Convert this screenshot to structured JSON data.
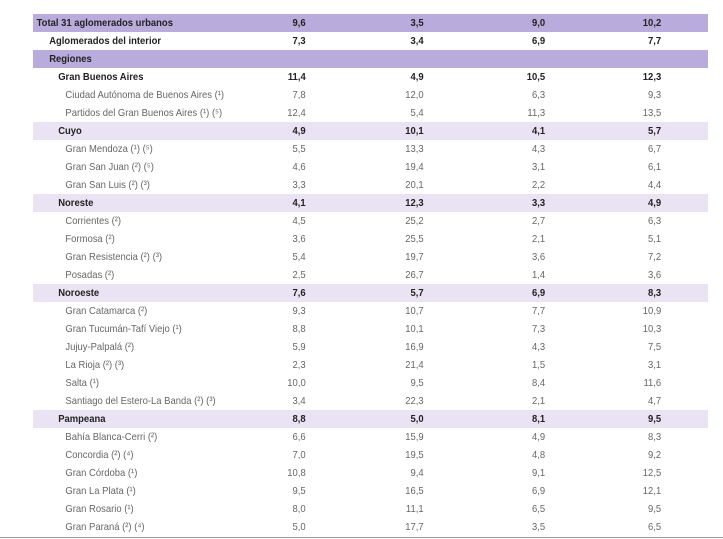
{
  "rows": [
    {
      "type": "dark",
      "level": 0,
      "label": "Total 31 aglomerados urbanos",
      "values": [
        "9,6",
        "3,5",
        "9,0",
        "10,2"
      ]
    },
    {
      "type": "bold",
      "level": 1,
      "label": "Aglomerados del interior",
      "values": [
        "7,3",
        "3,4",
        "6,9",
        "7,7"
      ]
    },
    {
      "type": "dark",
      "level": 1,
      "label": "Regiones",
      "values": [
        "",
        "",
        "",
        ""
      ]
    },
    {
      "type": "bold",
      "level": 2,
      "label": "Gran Buenos Aires",
      "values": [
        "11,4",
        "4,9",
        "10,5",
        "12,3"
      ]
    },
    {
      "type": "city",
      "level": 3,
      "label": "Ciudad Autónoma de Buenos Aires (¹)",
      "values": [
        "7,8",
        "12,0",
        "6,3",
        "9,3"
      ]
    },
    {
      "type": "city",
      "level": 3,
      "label": "Partidos del Gran Buenos Aires (¹) (⁵)",
      "values": [
        "12,4",
        "5,4",
        "11,3",
        "13,5"
      ]
    },
    {
      "type": "light",
      "level": 2,
      "label": "Cuyo",
      "values": [
        "4,9",
        "10,1",
        "4,1",
        "5,7"
      ]
    },
    {
      "type": "city",
      "level": 3,
      "label": "Gran Mendoza (¹) (⁵)",
      "values": [
        "5,5",
        "13,3",
        "4,3",
        "6,7"
      ]
    },
    {
      "type": "city",
      "level": 3,
      "label": "Gran San Juan (²) (⁵)",
      "values": [
        "4,6",
        "19,4",
        "3,1",
        "6,1"
      ]
    },
    {
      "type": "city",
      "level": 3,
      "label": "Gran San Luis (²) (³)",
      "values": [
        "3,3",
        "20,1",
        "2,2",
        "4,4"
      ]
    },
    {
      "type": "light",
      "level": 2,
      "label": "Noreste",
      "values": [
        "4,1",
        "12,3",
        "3,3",
        "4,9"
      ]
    },
    {
      "type": "city",
      "level": 3,
      "label": "Corrientes (²)",
      "values": [
        "4,5",
        "25,2",
        "2,7",
        "6,3"
      ]
    },
    {
      "type": "city",
      "level": 3,
      "label": "Formosa (²)",
      "values": [
        "3,6",
        "25,5",
        "2,1",
        "5,1"
      ]
    },
    {
      "type": "city",
      "level": 3,
      "label": "Gran Resistencia (²) (³)",
      "values": [
        "5,4",
        "19,7",
        "3,6",
        "7,2"
      ]
    },
    {
      "type": "city",
      "level": 3,
      "label": "Posadas (²)",
      "values": [
        "2,5",
        "26,7",
        "1,4",
        "3,6"
      ]
    },
    {
      "type": "light",
      "level": 2,
      "label": "Noroeste",
      "values": [
        "7,6",
        "5,7",
        "6,9",
        "8,3"
      ]
    },
    {
      "type": "city",
      "level": 3,
      "label": "Gran Catamarca (²)",
      "values": [
        "9,3",
        "10,7",
        "7,7",
        "10,9"
      ]
    },
    {
      "type": "city",
      "level": 3,
      "label": "Gran Tucumán-Tafí Viejo (¹)",
      "values": [
        "8,8",
        "10,1",
        "7,3",
        "10,3"
      ]
    },
    {
      "type": "city",
      "level": 3,
      "label": "Jujuy-Palpalá (²)",
      "values": [
        "5,9",
        "16,9",
        "4,3",
        "7,5"
      ]
    },
    {
      "type": "city",
      "level": 3,
      "label": "La Rioja (²) (³)",
      "values": [
        "2,3",
        "21,4",
        "1,5",
        "3,1"
      ]
    },
    {
      "type": "city",
      "level": 3,
      "label": "Salta (¹)",
      "values": [
        "10,0",
        "9,5",
        "8,4",
        "11,6"
      ]
    },
    {
      "type": "city",
      "level": 3,
      "label": "Santiago del Estero-La Banda (²) (³)",
      "values": [
        "3,4",
        "22,3",
        "2,1",
        "4,7"
      ]
    },
    {
      "type": "light",
      "level": 2,
      "label": "Pampeana",
      "values": [
        "8,8",
        "5,0",
        "8,1",
        "9,5"
      ]
    },
    {
      "type": "city",
      "level": 3,
      "label": "Bahía Blanca-Cerri (²)",
      "values": [
        "6,6",
        "15,9",
        "4,9",
        "8,3"
      ]
    },
    {
      "type": "city",
      "level": 3,
      "label": "Concordia (²) (⁴)",
      "values": [
        "7,0",
        "19,5",
        "4,8",
        "9,2"
      ]
    },
    {
      "type": "city",
      "level": 3,
      "label": "Gran Córdoba (¹)",
      "values": [
        "10,8",
        "9,4",
        "9,1",
        "12,5"
      ]
    },
    {
      "type": "city",
      "level": 3,
      "label": "Gran La Plata (¹)",
      "values": [
        "9,5",
        "16,5",
        "6,9",
        "12,1"
      ]
    },
    {
      "type": "city",
      "level": 3,
      "label": "Gran Rosario (¹)",
      "values": [
        "8,0",
        "11,1",
        "6,5",
        "9,5"
      ]
    },
    {
      "type": "city",
      "level": 3,
      "label": "Gran Paraná (²) (⁴)",
      "values": [
        "5,0",
        "17,7",
        "3,5",
        "6,5"
      ]
    }
  ]
}
